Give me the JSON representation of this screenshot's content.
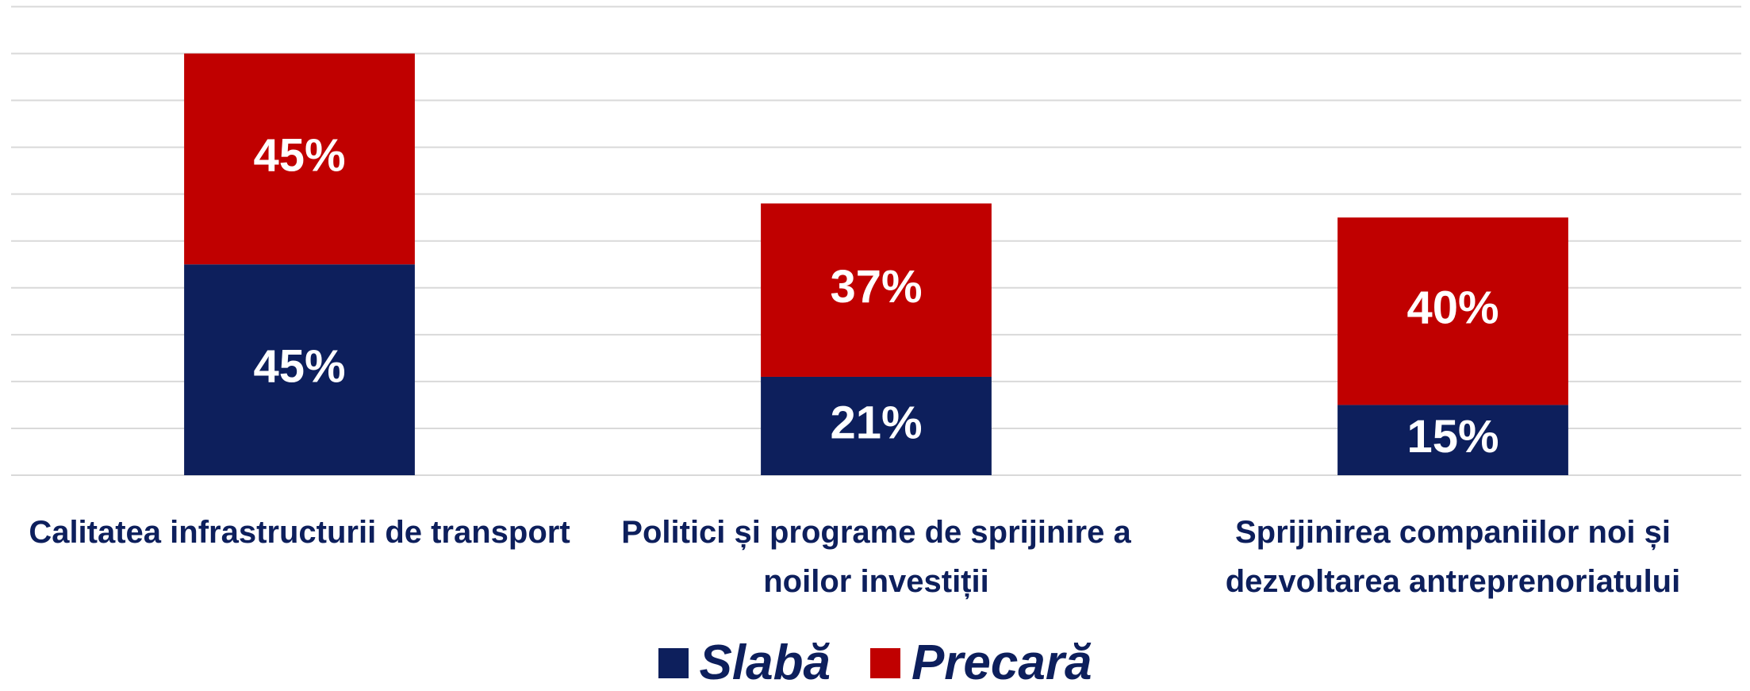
{
  "chart_data": {
    "type": "stacked_bar",
    "categories": [
      "Calitatea infrastructurii de transport",
      "Politici și programe de sprijinire a noilor investiții",
      "Sprijinirea companiilor noi și dezvoltarea antreprenoriatului"
    ],
    "series": [
      {
        "name": "Slabă",
        "color": "#0d1f5c",
        "values": [
          45,
          21,
          15
        ],
        "value_labels": [
          "45%",
          "21%",
          "15%"
        ]
      },
      {
        "name": "Precară",
        "color": "#c00000",
        "values": [
          45,
          37,
          40
        ],
        "value_labels": [
          "45%",
          "37%",
          "40%"
        ]
      }
    ],
    "ylim": [
      0,
      100
    ],
    "yticks": [
      0,
      10,
      20,
      30,
      40,
      50,
      60,
      70,
      80,
      90,
      100
    ],
    "grid": true
  }
}
